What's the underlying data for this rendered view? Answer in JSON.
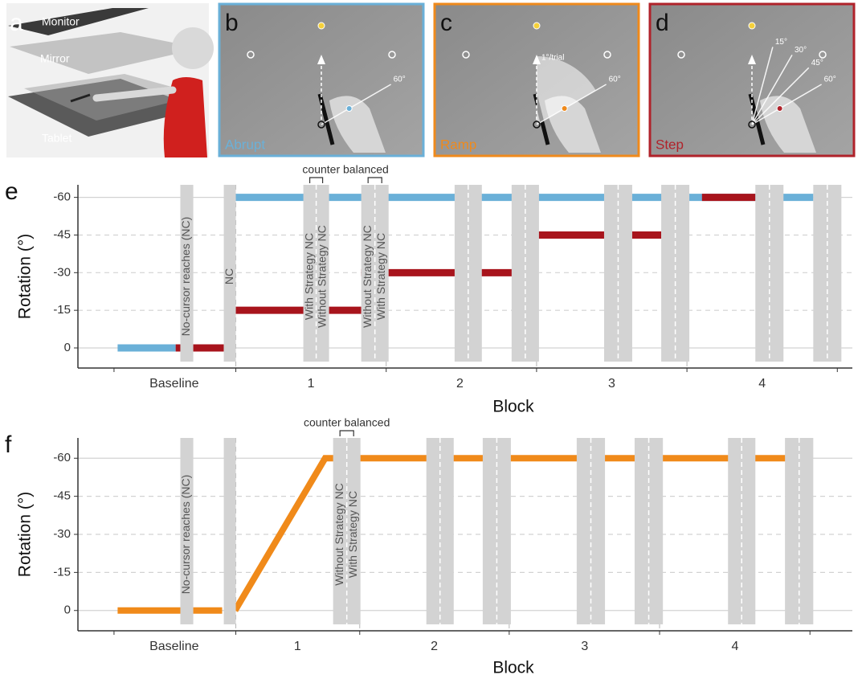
{
  "panels": [
    {
      "letter": "a",
      "labels": [
        "Monitor",
        "Mirror",
        "Tablet"
      ]
    },
    {
      "letter": "b",
      "condition": "Abrupt",
      "color": "#6ab0d8",
      "angle_labels": [
        "60°"
      ]
    },
    {
      "letter": "c",
      "condition": "Ramp",
      "color": "#ef8a1c",
      "ramp_label": "1°/trial",
      "angle_labels": [
        "60°"
      ]
    },
    {
      "letter": "d",
      "condition": "Step",
      "color": "#b0222a",
      "angle_labels": [
        "15°",
        "30°",
        "45°",
        "60°"
      ]
    }
  ],
  "chart_data": [
    {
      "type": "line",
      "letter": "e",
      "ylabel": "Rotation (°)",
      "xlabel": "Block",
      "xlim": [
        -0.05,
        5.1
      ],
      "ylim": [
        8,
        -65
      ],
      "yticks": [
        -60,
        -45,
        -30,
        -15,
        0
      ],
      "xticks": [
        {
          "value": 0.59,
          "label": "Baseline"
        },
        {
          "value": 1.5,
          "label": "1"
        },
        {
          "value": 2.49,
          "label": "2"
        },
        {
          "value": 3.5,
          "label": "3"
        },
        {
          "value": 4.5,
          "label": "4"
        }
      ],
      "block_boundaries": [
        0.19,
        1,
        2,
        3,
        4,
        5
      ],
      "bracket_label": "counter balanced",
      "nc_blocks": [
        {
          "x": [
            0.631,
            0.717
          ],
          "labels": [
            "No-cursor reaches (NC)"
          ]
        },
        {
          "x": [
            0.92,
            1.0
          ],
          "labels": [
            "NC"
          ]
        },
        {
          "x": [
            1.449,
            1.62
          ],
          "labels": [
            "With Strategy NC",
            "Without Strategy NC"
          ],
          "bracket": true
        },
        {
          "x": [
            1.834,
            2.016
          ],
          "labels": [
            "Without Strategy NC",
            "With Strategy NC"
          ],
          "bracket": true
        },
        {
          "x": [
            2.455,
            2.636
          ]
        },
        {
          "x": [
            2.834,
            3.016
          ]
        },
        {
          "x": [
            3.449,
            3.636
          ]
        },
        {
          "x": [
            3.829,
            4.016
          ]
        },
        {
          "x": [
            4.455,
            4.642
          ]
        },
        {
          "x": [
            4.84,
            5.027
          ]
        }
      ],
      "series": [
        {
          "color": "#6ab0d8",
          "x": [
            0.214,
            0.6,
            null,
            1.0,
            4.84
          ],
          "values": [
            0,
            0,
            null,
            -60,
            -60
          ]
        },
        {
          "color": "#a8141c",
          "x": [
            0.6,
            0.92,
            null,
            1.0,
            1.834,
            null,
            1.834,
            2.836,
            null,
            2.836,
            3.829,
            null,
            4.1,
            4.455
          ],
          "values": [
            0,
            0,
            null,
            -15,
            -15,
            null,
            -30,
            -30,
            null,
            -45,
            -45,
            null,
            -60,
            -60
          ]
        }
      ]
    },
    {
      "type": "line",
      "letter": "f",
      "ylabel": "Rotation (°)",
      "xlabel": "Block",
      "xlim": [
        -0.05,
        5.1
      ],
      "ylim": [
        8,
        -68
      ],
      "yticks": [
        -60,
        -45,
        -30,
        -15,
        0
      ],
      "xticks": [
        {
          "value": 0.59,
          "label": "Baseline"
        },
        {
          "value": 1.41,
          "label": "1"
        },
        {
          "value": 2.32,
          "label": "2"
        },
        {
          "value": 3.32,
          "label": "3"
        },
        {
          "value": 4.32,
          "label": "4"
        }
      ],
      "block_boundaries": [
        0.19,
        1.0,
        1.824,
        2.818,
        3.818,
        4.818
      ],
      "bracket_label": "counter balanced",
      "nc_blocks": [
        {
          "x": [
            0.631,
            0.717
          ],
          "labels": [
            "No-cursor reaches (NC)"
          ]
        },
        {
          "x": [
            0.92,
            1.0
          ]
        },
        {
          "x": [
            1.647,
            1.829
          ],
          "labels": [
            "Without Strategy NC",
            "With Strategy NC"
          ],
          "bracket": true
        },
        {
          "x": [
            2.267,
            2.449
          ]
        },
        {
          "x": [
            2.642,
            2.829
          ]
        },
        {
          "x": [
            3.267,
            3.455
          ]
        },
        {
          "x": [
            3.652,
            3.84
          ]
        },
        {
          "x": [
            4.273,
            4.455
          ]
        },
        {
          "x": [
            4.652,
            4.84
          ]
        }
      ],
      "series": [
        {
          "color": "#f08a1a",
          "x": [
            0.214,
            0.909,
            null,
            0.995,
            1.594,
            4.658
          ],
          "values": [
            0,
            0,
            null,
            0,
            -60,
            -60
          ]
        }
      ]
    }
  ]
}
